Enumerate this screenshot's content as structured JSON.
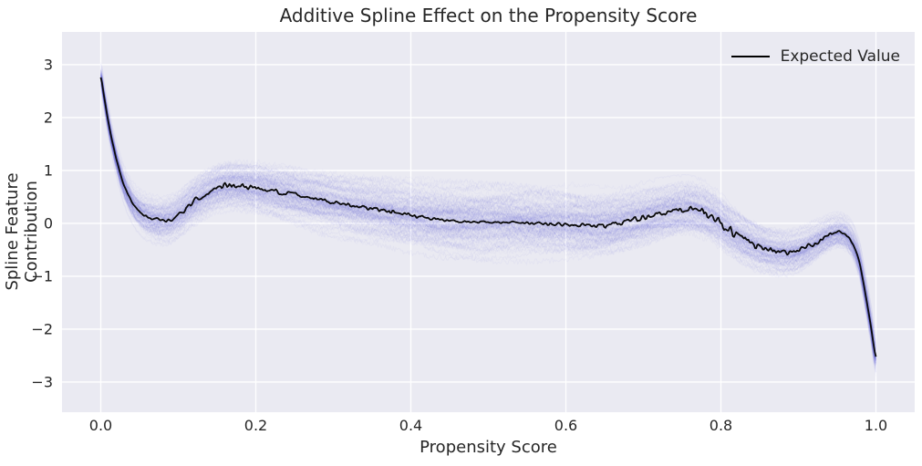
{
  "chart_data": {
    "type": "line",
    "title": "Additive Spline Effect on the Propensity Score",
    "xlabel": "Propensity Score",
    "ylabel": "Spline Feature Contribution",
    "xlim": [
      -0.05,
      1.05
    ],
    "ylim": [
      -3.57,
      3.62
    ],
    "xticks": [
      0.0,
      0.2,
      0.4,
      0.6,
      0.8,
      1.0
    ],
    "xtick_labels": [
      "0.0",
      "0.2",
      "0.4",
      "0.6",
      "0.8",
      "1.0"
    ],
    "yticks": [
      -3,
      -2,
      -1,
      0,
      1,
      2,
      3
    ],
    "ytick_labels": [
      "−3",
      "−2",
      "−1",
      "0",
      "1",
      "2",
      "3"
    ],
    "grid": true,
    "legend": {
      "position": "upper right",
      "entries": [
        {
          "label": "Expected Value",
          "color": "#000000"
        }
      ]
    },
    "colors": {
      "plot_bg": "#EAEAF2",
      "grid": "#FFFFFF",
      "band": "#4444D8",
      "expected_line": "#0A0A0A",
      "text": "#262626",
      "figure_bg": "#FFFFFF"
    },
    "series": [
      {
        "name": "Expected Value",
        "style": "noisy-line",
        "color": "#0A0A0A",
        "points": [
          [
            0.0,
            2.76
          ],
          [
            0.004,
            2.42
          ],
          [
            0.009,
            1.98
          ],
          [
            0.014,
            1.6
          ],
          [
            0.02,
            1.22
          ],
          [
            0.027,
            0.85
          ],
          [
            0.034,
            0.58
          ],
          [
            0.042,
            0.36
          ],
          [
            0.052,
            0.2
          ],
          [
            0.062,
            0.11
          ],
          [
            0.075,
            0.06
          ],
          [
            0.088,
            0.07
          ],
          [
            0.1,
            0.16
          ],
          [
            0.113,
            0.32
          ],
          [
            0.127,
            0.48
          ],
          [
            0.14,
            0.6
          ],
          [
            0.153,
            0.68
          ],
          [
            0.167,
            0.72
          ],
          [
            0.182,
            0.71
          ],
          [
            0.2,
            0.68
          ],
          [
            0.222,
            0.62
          ],
          [
            0.248,
            0.55
          ],
          [
            0.275,
            0.47
          ],
          [
            0.305,
            0.39
          ],
          [
            0.335,
            0.31
          ],
          [
            0.365,
            0.25
          ],
          [
            0.395,
            0.17
          ],
          [
            0.425,
            0.1
          ],
          [
            0.455,
            0.05
          ],
          [
            0.485,
            0.03
          ],
          [
            0.515,
            0.02
          ],
          [
            0.545,
            0.01
          ],
          [
            0.575,
            -0.01
          ],
          [
            0.605,
            -0.03
          ],
          [
            0.632,
            -0.05
          ],
          [
            0.658,
            -0.02
          ],
          [
            0.682,
            0.05
          ],
          [
            0.705,
            0.12
          ],
          [
            0.728,
            0.2
          ],
          [
            0.75,
            0.26
          ],
          [
            0.77,
            0.24
          ],
          [
            0.79,
            0.12
          ],
          [
            0.81,
            -0.1
          ],
          [
            0.83,
            -0.3
          ],
          [
            0.85,
            -0.44
          ],
          [
            0.87,
            -0.52
          ],
          [
            0.888,
            -0.55
          ],
          [
            0.905,
            -0.5
          ],
          [
            0.92,
            -0.38
          ],
          [
            0.935,
            -0.26
          ],
          [
            0.948,
            -0.18
          ],
          [
            0.96,
            -0.21
          ],
          [
            0.97,
            -0.38
          ],
          [
            0.979,
            -0.75
          ],
          [
            0.986,
            -1.3
          ],
          [
            0.993,
            -1.9
          ],
          [
            1.0,
            -2.52
          ]
        ],
        "jitter_amplitude_profile": [
          [
            0.0,
            0.0
          ],
          [
            0.03,
            0.01
          ],
          [
            0.08,
            0.03
          ],
          [
            0.13,
            0.05
          ],
          [
            0.2,
            0.045
          ],
          [
            0.28,
            0.03
          ],
          [
            0.36,
            0.035
          ],
          [
            0.45,
            0.022
          ],
          [
            0.55,
            0.018
          ],
          [
            0.63,
            0.04
          ],
          [
            0.69,
            0.05
          ],
          [
            0.74,
            0.04
          ],
          [
            0.78,
            0.08
          ],
          [
            0.82,
            0.09
          ],
          [
            0.86,
            0.055
          ],
          [
            0.9,
            0.045
          ],
          [
            0.94,
            0.035
          ],
          [
            0.97,
            0.015
          ],
          [
            1.0,
            0.0
          ]
        ]
      },
      {
        "name": "spline-sample-band",
        "style": "ensemble-band",
        "color": "#4444D8",
        "strand_count": 130,
        "strand_alpha": 0.032,
        "halfwidth_profile": [
          [
            0.0,
            0.25
          ],
          [
            0.03,
            0.32
          ],
          [
            0.07,
            0.42
          ],
          [
            0.12,
            0.46
          ],
          [
            0.2,
            0.5
          ],
          [
            0.3,
            0.57
          ],
          [
            0.4,
            0.66
          ],
          [
            0.5,
            0.7
          ],
          [
            0.6,
            0.66
          ],
          [
            0.7,
            0.58
          ],
          [
            0.75,
            0.53
          ],
          [
            0.8,
            0.5
          ],
          [
            0.85,
            0.46
          ],
          [
            0.9,
            0.42
          ],
          [
            0.95,
            0.32
          ],
          [
            1.0,
            0.36
          ]
        ]
      }
    ]
  }
}
